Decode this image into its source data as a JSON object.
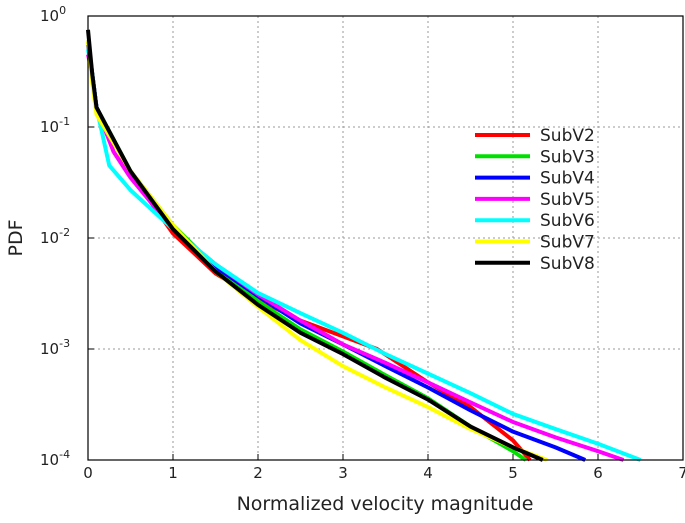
{
  "chart_data": {
    "type": "line",
    "x_label": "Normalized velocity magnitude",
    "y_label": "PDF",
    "ylog": true,
    "grid": true,
    "legend": "upper right",
    "xlim": [
      0,
      7
    ],
    "xticks": [
      0,
      1,
      2,
      3,
      4,
      5,
      6,
      7
    ],
    "ylim": [
      0.0001,
      1
    ],
    "yticks": [
      {
        "value": 0.0001,
        "label": "10",
        "exponent": "-4"
      },
      {
        "value": 0.001,
        "label": "10",
        "exponent": "-3"
      },
      {
        "value": 0.01,
        "label": "10",
        "exponent": "-2"
      },
      {
        "value": 0.1,
        "label": "10",
        "exponent": "-1"
      },
      {
        "value": 1,
        "label": "10",
        "exponent": "0"
      }
    ],
    "series": [
      {
        "name": "SubV2",
        "color": "#ff0000",
        "x": [
          0,
          0.05,
          0.1,
          0.5,
          1,
          1.5,
          2,
          2.5,
          3,
          3.4,
          4,
          4.5,
          5,
          5.2
        ],
        "values": [
          0.6,
          0.3,
          0.15,
          0.038,
          0.011,
          0.0048,
          0.0028,
          0.0018,
          0.0013,
          0.001,
          0.0005,
          0.0003,
          0.00015,
          0.0001
        ]
      },
      {
        "name": "SubV3",
        "color": "#00e000",
        "x": [
          0,
          0.05,
          0.1,
          0.5,
          1,
          1.5,
          2,
          2.5,
          3,
          3.5,
          4,
          4.5,
          5,
          5.15
        ],
        "values": [
          0.6,
          0.3,
          0.15,
          0.04,
          0.013,
          0.0055,
          0.0027,
          0.0015,
          0.00095,
          0.00058,
          0.00036,
          0.0002,
          0.00012,
          0.0001
        ]
      },
      {
        "name": "SubV4",
        "color": "#0000ff",
        "x": [
          0,
          0.05,
          0.1,
          0.5,
          1,
          1.5,
          2,
          2.5,
          3,
          3.5,
          4,
          4.5,
          5,
          5.5,
          5.85
        ],
        "values": [
          0.55,
          0.3,
          0.15,
          0.038,
          0.012,
          0.0055,
          0.003,
          0.0017,
          0.0011,
          0.0007,
          0.00045,
          0.00028,
          0.00018,
          0.00013,
          0.0001
        ]
      },
      {
        "name": "SubV5",
        "color": "#ff00ff",
        "x": [
          0,
          0.05,
          0.1,
          0.3,
          0.5,
          1,
          1.5,
          2,
          2.5,
          3,
          3.5,
          4,
          4.5,
          5,
          5.5,
          6,
          6.3
        ],
        "values": [
          0.45,
          0.3,
          0.15,
          0.06,
          0.035,
          0.012,
          0.0058,
          0.0031,
          0.0018,
          0.0011,
          0.00075,
          0.0005,
          0.00033,
          0.00022,
          0.00016,
          0.00012,
          0.0001
        ]
      },
      {
        "name": "SubV6",
        "color": "#00ffff",
        "x": [
          0,
          0.05,
          0.1,
          0.25,
          0.5,
          1,
          1.5,
          2,
          2.5,
          3,
          3.5,
          4,
          4.5,
          5,
          5.5,
          6,
          6.5
        ],
        "values": [
          0.5,
          0.3,
          0.15,
          0.045,
          0.027,
          0.012,
          0.0058,
          0.0032,
          0.0021,
          0.0014,
          0.0009,
          0.0006,
          0.0004,
          0.00026,
          0.00019,
          0.00014,
          0.0001
        ]
      },
      {
        "name": "SubV7",
        "color": "#ffff00",
        "x": [
          0,
          0.05,
          0.1,
          0.5,
          1,
          1.5,
          2,
          2.5,
          3,
          3.5,
          4,
          4.5,
          5,
          5.4
        ],
        "values": [
          0.6,
          0.25,
          0.13,
          0.04,
          0.013,
          0.005,
          0.0024,
          0.0012,
          0.0007,
          0.00045,
          0.0003,
          0.00019,
          0.00013,
          0.0001
        ]
      },
      {
        "name": "SubV8",
        "color": "#000000",
        "x": [
          0,
          0.05,
          0.1,
          0.5,
          1,
          1.5,
          2,
          2.5,
          3,
          3.5,
          4,
          4.5,
          5,
          5.35
        ],
        "values": [
          0.75,
          0.3,
          0.15,
          0.04,
          0.012,
          0.005,
          0.0025,
          0.0014,
          0.0009,
          0.00055,
          0.00035,
          0.0002,
          0.00013,
          0.0001
        ]
      }
    ]
  }
}
